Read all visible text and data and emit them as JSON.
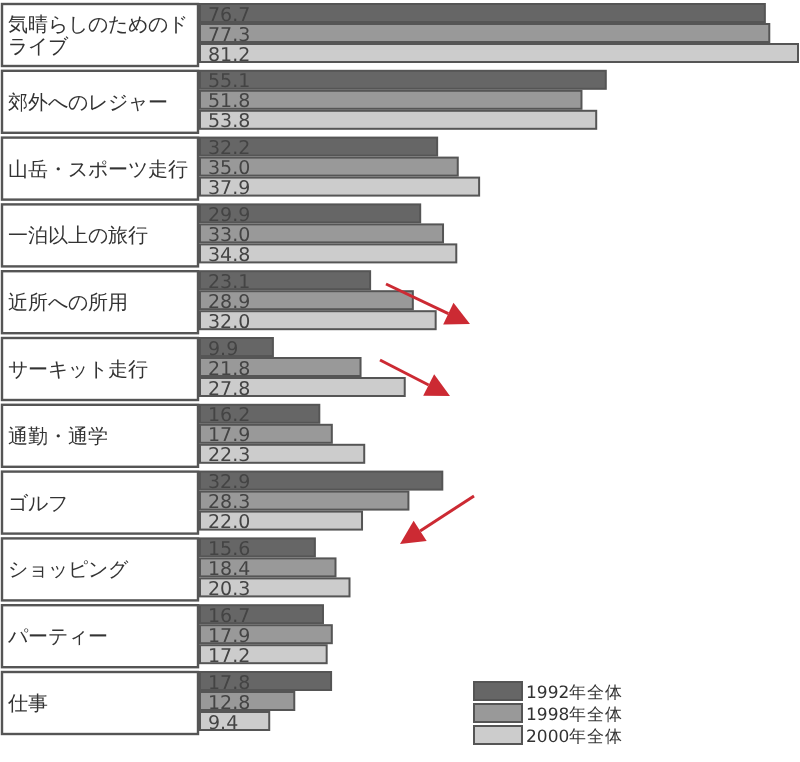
{
  "chart_data": {
    "type": "bar",
    "orientation": "horizontal",
    "relative": false,
    "legend": "bottom right",
    "categories": [
      "気晴らしのためのドライブ",
      "郊外へのレジャー",
      "山岳・スポーツ走行",
      "一泊以上の旅行",
      "近所への所用",
      "サーキット走行",
      "通勤・通学",
      "ゴルフ",
      "ショッピング",
      "パーティー",
      "仕事"
    ],
    "series": [
      {
        "name": "1992年全体",
        "color": "#666666",
        "values": [
          76.7,
          55.1,
          32.2,
          29.9,
          23.1,
          9.9,
          16.2,
          32.9,
          15.6,
          16.7,
          17.8
        ],
        "value_labels": [
          "76.7",
          "55.1",
          "32.2",
          "29.9",
          "23.1",
          "9.9",
          "16.2",
          "32.9",
          "15.6",
          "16.7",
          "17.8"
        ]
      },
      {
        "name": "1998年全体",
        "color": "#999999",
        "values": [
          77.3,
          51.8,
          35.0,
          33.0,
          28.9,
          21.8,
          17.9,
          28.3,
          18.4,
          17.9,
          12.8
        ],
        "value_labels": [
          "77.3",
          "51.8",
          "35.0",
          "33.0",
          "28.9",
          "21.8",
          "17.9",
          "28.3",
          "18.4",
          "17.9",
          "12.8"
        ]
      },
      {
        "name": "2000年全体",
        "color": "#cccccc",
        "values": [
          81.2,
          53.8,
          37.9,
          34.8,
          32.0,
          27.8,
          22.3,
          22.0,
          20.3,
          17.2,
          9.4
        ],
        "value_labels": [
          "81.2",
          "53.8",
          "37.9",
          "34.8",
          "32.0",
          "27.8",
          "22.3",
          "22.0",
          "20.3",
          "17.2",
          "9.4"
        ]
      }
    ]
  }
}
